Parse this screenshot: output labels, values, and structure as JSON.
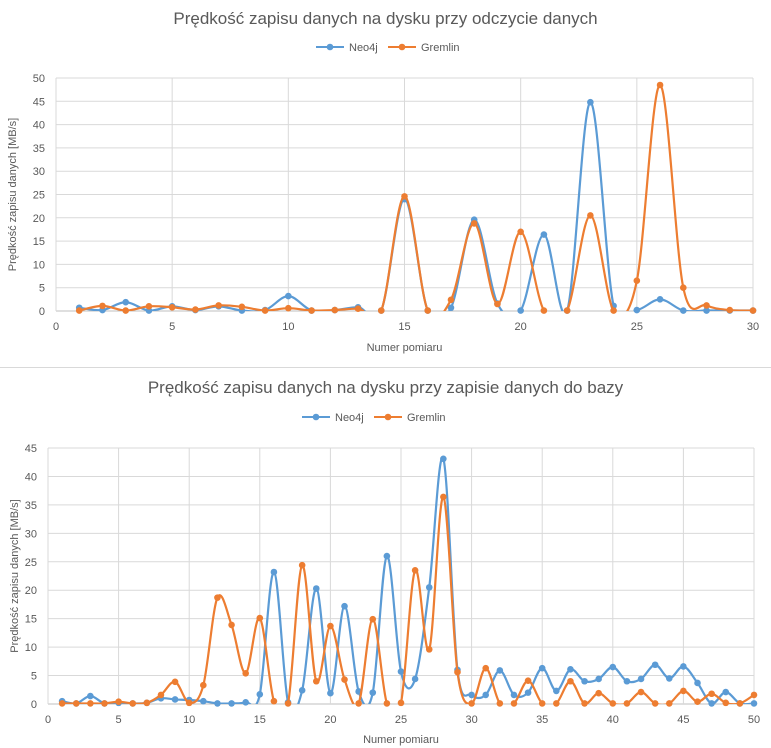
{
  "colors": {
    "neo4j": "#5b9bd5",
    "gremlin": "#ed7d31"
  },
  "chart_data": [
    {
      "type": "line",
      "title": "Prędkość zapisu danych na dysku przy odczycie danych",
      "xlabel": "Numer pomiaru",
      "ylabel": "Prędkość zapisu danych [MB/s]",
      "xlim": [
        0,
        30
      ],
      "ylim": [
        0,
        50
      ],
      "xticks": [
        0,
        5,
        10,
        15,
        20,
        25,
        30
      ],
      "yticks": [
        0,
        5,
        10,
        15,
        20,
        25,
        30,
        35,
        40,
        45,
        50
      ],
      "legend": "top-center",
      "smooth": true,
      "x": [
        1,
        2,
        3,
        4,
        5,
        6,
        7,
        8,
        9,
        10,
        11,
        12,
        13,
        14,
        15,
        16,
        17,
        18,
        19,
        20,
        21,
        22,
        23,
        24,
        25,
        26,
        27,
        28,
        29,
        30
      ],
      "series": [
        {
          "name": "Neo4j",
          "color": "#5b9bd5",
          "values": [
            0.7,
            0.2,
            1.9,
            0.1,
            1.0,
            0.2,
            1.0,
            0.1,
            0.2,
            3.2,
            0.1,
            0.2,
            0.8,
            0.1,
            24.0,
            0.1,
            0.7,
            19.6,
            1.6,
            0.1,
            16.4,
            0.1,
            44.8,
            1.1,
            0.2,
            2.5,
            0.1,
            0.1,
            0.1,
            0.1
          ]
        },
        {
          "name": "Gremlin",
          "color": "#ed7d31",
          "values": [
            0.1,
            1.1,
            0.1,
            1.0,
            0.8,
            0.3,
            1.2,
            0.9,
            0.1,
            0.6,
            0.1,
            0.2,
            0.5,
            0.1,
            24.6,
            0.1,
            2.4,
            18.8,
            1.5,
            17.0,
            0.1,
            0.1,
            20.5,
            0.1,
            6.5,
            48.5,
            5.0,
            1.2,
            0.2,
            0.1
          ]
        }
      ]
    },
    {
      "type": "line",
      "title": "Prędkość zapisu danych na dysku przy zapisie danych do bazy",
      "xlabel": "Numer pomiaru",
      "ylabel": "Prędkość zapisu danych [MB/s]",
      "xlim": [
        0,
        50
      ],
      "ylim": [
        0,
        45
      ],
      "xticks": [
        0,
        5,
        10,
        15,
        20,
        25,
        30,
        35,
        40,
        45,
        50
      ],
      "yticks": [
        0,
        5,
        10,
        15,
        20,
        25,
        30,
        35,
        40,
        45
      ],
      "legend": "top-center",
      "smooth": true,
      "x": [
        1,
        2,
        3,
        4,
        5,
        6,
        7,
        8,
        9,
        10,
        11,
        12,
        13,
        14,
        15,
        16,
        17,
        18,
        19,
        20,
        21,
        22,
        23,
        24,
        25,
        26,
        27,
        28,
        29,
        30,
        31,
        32,
        33,
        34,
        35,
        36,
        37,
        38,
        39,
        40,
        41,
        42,
        43,
        44,
        45,
        46,
        47,
        48,
        49,
        50
      ],
      "series": [
        {
          "name": "Neo4j",
          "color": "#5b9bd5",
          "values": [
            0.5,
            0.1,
            1.4,
            0.1,
            0.2,
            0.1,
            0.2,
            1.0,
            0.8,
            0.7,
            0.5,
            0.1,
            0.1,
            0.3,
            1.7,
            23.2,
            0.3,
            2.4,
            20.3,
            1.9,
            17.2,
            2.2,
            2.0,
            26.0,
            5.7,
            4.4,
            20.5,
            43.1,
            6.0,
            1.6,
            1.6,
            5.9,
            1.6,
            2.0,
            6.3,
            2.3,
            6.1,
            4.0,
            4.4,
            6.5,
            4.0,
            4.4,
            6.9,
            4.5,
            6.6,
            3.7,
            0.1,
            2.1,
            0.1,
            0.1
          ]
        },
        {
          "name": "Gremlin",
          "color": "#ed7d31",
          "values": [
            0.1,
            0.1,
            0.1,
            0.1,
            0.4,
            0.1,
            0.2,
            1.6,
            3.9,
            0.2,
            3.3,
            18.7,
            13.9,
            5.4,
            15.1,
            0.5,
            0.1,
            24.4,
            4.0,
            13.7,
            4.3,
            0.1,
            14.9,
            0.1,
            0.2,
            23.5,
            9.6,
            36.4,
            5.6,
            0.1,
            6.3,
            0.1,
            0.1,
            4.1,
            0.1,
            0.1,
            4.0,
            0.1,
            1.9,
            0.1,
            0.1,
            2.1,
            0.1,
            0.1,
            2.3,
            0.4,
            1.8,
            0.2,
            0.1,
            1.6
          ]
        }
      ]
    }
  ]
}
